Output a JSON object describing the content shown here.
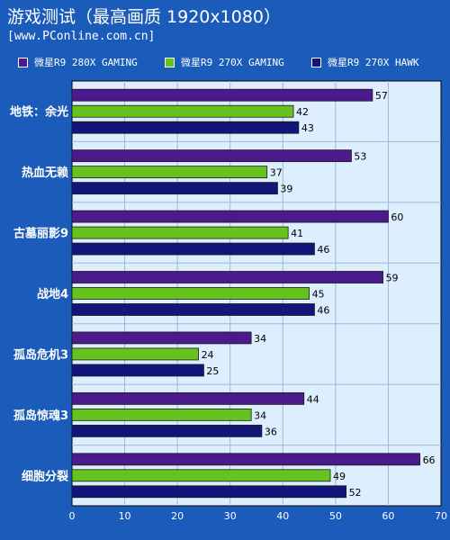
{
  "header": {
    "title": "游戏测试（最高画质 1920x1080）",
    "source": "[www.PConline.com.cn]"
  },
  "colors": {
    "background": "#1b5cbb",
    "plot_background": "#ddeeff",
    "series": [
      "#4b1a8c",
      "#66c21d",
      "#12157a"
    ]
  },
  "chart_data": {
    "type": "bar",
    "orientation": "horizontal",
    "categories": [
      "地铁：余光",
      "热血无赖",
      "古墓丽影9",
      "战地4",
      "孤岛危机3",
      "孤岛惊魂3",
      "细胞分裂"
    ],
    "series": [
      {
        "name": "微星R9 280X GAMING",
        "values": [
          57,
          53,
          60,
          59,
          34,
          44,
          66
        ]
      },
      {
        "name": "微星R9 270X GAMING",
        "values": [
          42,
          37,
          41,
          45,
          24,
          34,
          49
        ]
      },
      {
        "name": "微星R9 270X HAWK",
        "values": [
          43,
          39,
          46,
          46,
          25,
          36,
          52
        ]
      }
    ],
    "xlim": [
      0,
      70
    ],
    "xticks": [
      0,
      10,
      20,
      30,
      40,
      50,
      60,
      70
    ],
    "grid": true,
    "legend": "top",
    "title": "游戏测试（最高画质 1920x1080）",
    "xlabel": "",
    "ylabel": ""
  }
}
